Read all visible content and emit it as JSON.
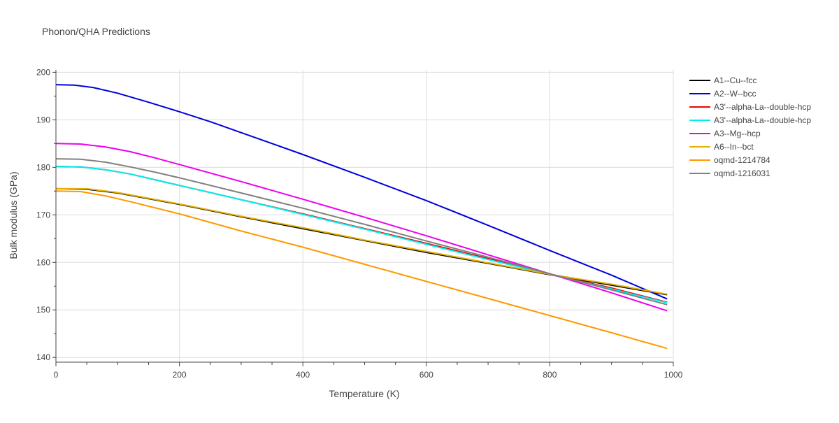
{
  "chart_data": {
    "type": "line",
    "title": "Phonon/QHA Predictions",
    "xlabel": "Temperature (K)",
    "ylabel": "Bulk modulus (GPa)",
    "xlim": [
      0,
      1000
    ],
    "ylim": [
      139,
      200.5
    ],
    "xticks": [
      0,
      200,
      400,
      600,
      800,
      1000
    ],
    "yticks": [
      140,
      150,
      160,
      170,
      180,
      190,
      200
    ],
    "grid": true,
    "legend_position": "right",
    "series": [
      {
        "name": "A1--Cu--fcc",
        "color": "#000000",
        "x": [
          0,
          50,
          100,
          150,
          200,
          300,
          400,
          500,
          600,
          700,
          800,
          900,
          990
        ],
        "y": [
          175.5,
          175.4,
          174.6,
          173.4,
          172.2,
          169.6,
          167.1,
          164.6,
          162.1,
          159.8,
          157.4,
          155.2,
          153.2
        ]
      },
      {
        "name": "A2--W--bcc",
        "color": "#0000dd",
        "x": [
          0,
          30,
          60,
          100,
          150,
          200,
          250,
          300,
          400,
          500,
          600,
          700,
          800,
          900,
          990
        ],
        "y": [
          197.4,
          197.3,
          196.8,
          195.6,
          193.7,
          191.7,
          189.6,
          187.3,
          182.7,
          177.9,
          173.0,
          167.8,
          162.5,
          157.3,
          152.3
        ]
      },
      {
        "name": "A3'--alpha-La--double-hcp",
        "color": "#ee0000",
        "x": [
          0,
          40,
          80,
          120,
          160,
          200,
          300,
          400,
          500,
          600,
          700,
          800,
          900,
          990
        ],
        "y": [
          180.2,
          180.1,
          179.5,
          178.6,
          177.4,
          176.2,
          173.2,
          170.2,
          167.1,
          164.0,
          160.8,
          157.5,
          154.6,
          151.6
        ]
      },
      {
        "name": "A3'--alpha-La--double-hcp",
        "color": "#00eeee",
        "x": [
          0,
          40,
          80,
          120,
          160,
          200,
          300,
          400,
          500,
          600,
          700,
          800,
          900,
          990
        ],
        "y": [
          180.2,
          180.1,
          179.5,
          178.6,
          177.4,
          176.2,
          173.2,
          170.1,
          167.0,
          163.8,
          160.6,
          157.5,
          154.4,
          151.5
        ]
      },
      {
        "name": "A3--Mg--hcp",
        "color": "#ee00ee",
        "x": [
          0,
          40,
          80,
          120,
          160,
          200,
          300,
          400,
          500,
          600,
          700,
          800,
          900,
          990
        ],
        "y": [
          185.0,
          184.9,
          184.3,
          183.3,
          182.0,
          180.6,
          177.0,
          173.3,
          169.5,
          165.6,
          161.6,
          157.6,
          153.6,
          149.8
        ]
      },
      {
        "name": "A6--In--bct",
        "color": "#e8b000",
        "x": [
          0,
          50,
          100,
          150,
          200,
          300,
          400,
          500,
          600,
          700,
          800,
          900,
          990
        ],
        "y": [
          175.5,
          175.5,
          174.7,
          173.5,
          172.3,
          169.7,
          167.3,
          164.7,
          162.3,
          159.9,
          157.5,
          155.4,
          153.3
        ]
      },
      {
        "name": "oqmd-1214784",
        "color": "#ff9900",
        "x": [
          0,
          40,
          80,
          120,
          160,
          200,
          300,
          400,
          500,
          600,
          700,
          800,
          900,
          990
        ],
        "y": [
          175.0,
          174.9,
          174.0,
          172.8,
          171.5,
          170.2,
          166.6,
          163.2,
          159.6,
          156.0,
          152.4,
          148.8,
          145.2,
          141.9
        ]
      },
      {
        "name": "oqmd-1216031",
        "color": "#808080",
        "x": [
          0,
          40,
          80,
          120,
          160,
          200,
          300,
          400,
          500,
          600,
          700,
          800,
          900,
          990
        ],
        "y": [
          181.8,
          181.7,
          181.1,
          180.1,
          179.0,
          177.8,
          174.6,
          171.4,
          168.0,
          164.5,
          161.1,
          157.6,
          154.2,
          151.1
        ]
      }
    ]
  }
}
